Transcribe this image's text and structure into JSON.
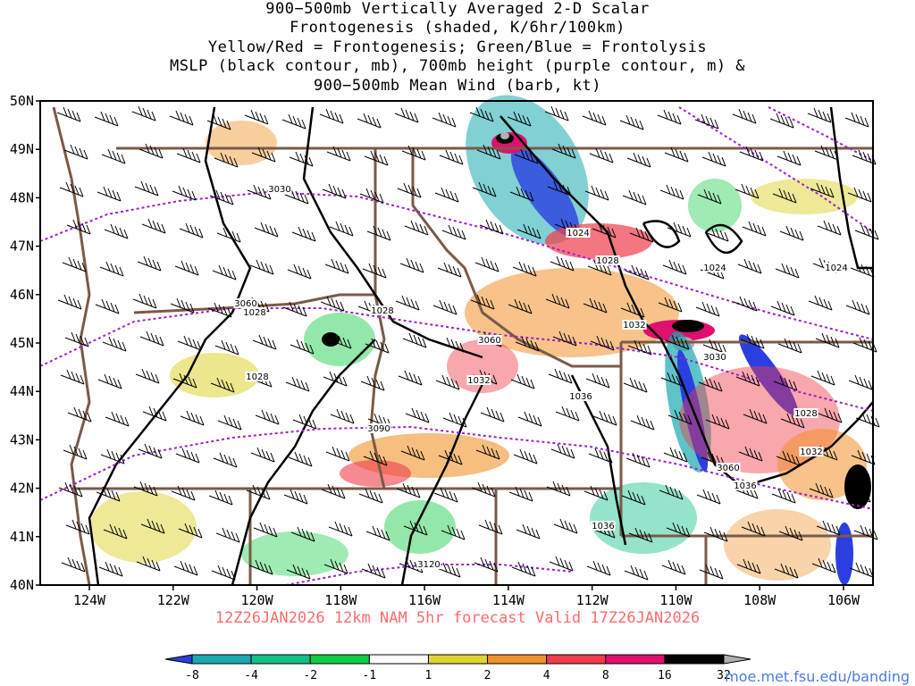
{
  "title_lines": [
    "900−500mb Vertically Averaged 2-D Scalar",
    "Frontogenesis (shaded, K/6hr/100km)",
    "Yellow/Red = Frontogenesis;  Green/Blue = Frontolysis",
    "MSLP (black contour, mb), 700mb height (purple contour, m) &",
    "900−500mb Mean Wind (barb, kt)"
  ],
  "lat_labels": [
    "50N",
    "49N",
    "48N",
    "47N",
    "46N",
    "45N",
    "44N",
    "43N",
    "42N",
    "41N",
    "40N"
  ],
  "lon_labels": [
    "124W",
    "122W",
    "120W",
    "118W",
    "116W",
    "114W",
    "112W",
    "110W",
    "108W",
    "106W"
  ],
  "footer": "12Z26JAN2026  12km NAM 5hr forecast Valid 17Z26JAN2026",
  "credit": "moe.met.fsu.edu/banding",
  "colorbar": {
    "ticks": [
      "-8",
      "-4",
      "-2",
      "-1",
      "1",
      "2",
      "4",
      "8",
      "16",
      "32"
    ],
    "colors": [
      "#2b3fe0",
      "#1aa9b0",
      "#14c08a",
      "#10cc40",
      "#ffffff",
      "#dcd330",
      "#f0922a",
      "#f03c4a",
      "#e0106e",
      "#000000",
      "#b0b0b0"
    ]
  },
  "isobar_labels": [
    "1024",
    "1028",
    "1028",
    "1028",
    "1028",
    "1032",
    "1036",
    "1032",
    "1024",
    "1024",
    "1028",
    "1032",
    "1036",
    "1036"
  ],
  "height_labels": [
    "3030",
    "3060",
    "3060",
    "3090",
    "3030",
    "3060",
    "3120"
  ],
  "colors": {
    "height_contour": "#9b20d0",
    "isobar": "#000000",
    "border": "#7a5a48",
    "footer": "#ff6b6b",
    "credit": "#4a7be8"
  }
}
